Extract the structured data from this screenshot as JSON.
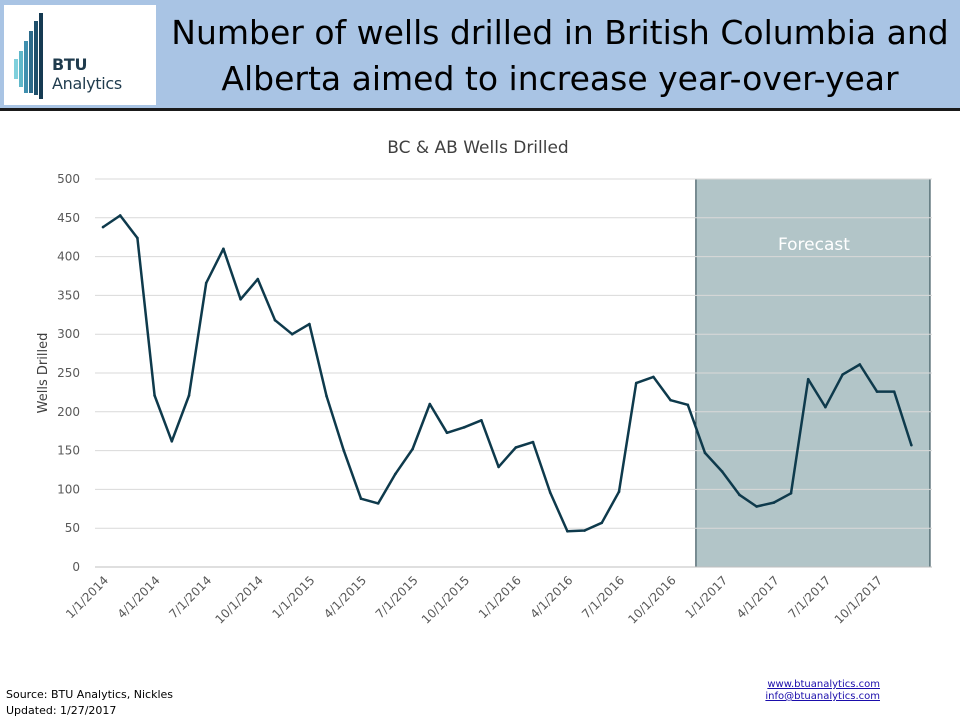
{
  "header": {
    "logo_text_bold": "BTU",
    "logo_text_rest": " Analytics",
    "title_line1": "Number of wells drilled in British Columbia and",
    "title_line2": "Alberta aimed to increase year-over-year",
    "background": "#a9c4e4"
  },
  "chart_data": {
    "type": "line",
    "title": "BC & AB Wells Drilled",
    "ylabel": "Wells Drilled",
    "xlabel": "",
    "ylim": [
      0,
      500
    ],
    "yticks": [
      0,
      50,
      100,
      150,
      200,
      250,
      300,
      350,
      400,
      450,
      500
    ],
    "grid": true,
    "x_start": "1/1/2014",
    "tick_labels": [
      "1/1/2014",
      "4/1/2014",
      "7/1/2014",
      "10/1/2014",
      "1/1/2015",
      "4/1/2015",
      "7/1/2015",
      "10/1/2015",
      "1/1/2016",
      "4/1/2016",
      "7/1/2016",
      "10/1/2016",
      "1/1/2017",
      "4/1/2017",
      "7/1/2017",
      "10/1/2017"
    ],
    "series": [
      {
        "color": "#0e3a4c",
        "values": [
          438,
          453,
          424,
          221,
          162,
          221,
          366,
          410,
          345,
          371,
          318,
          300,
          313,
          220,
          150,
          88,
          82,
          120,
          152,
          210,
          173,
          180,
          189,
          129,
          154,
          161,
          96,
          46,
          47,
          57,
          97,
          237,
          245,
          215,
          209,
          147,
          123,
          93,
          78,
          83,
          95,
          242,
          206,
          248,
          261,
          226,
          226,
          157
        ]
      }
    ],
    "forecast": {
      "label": "Forecast",
      "start_index": 35,
      "color": "#7f9ea4"
    }
  },
  "footer": {
    "source": "Source: BTU Analytics, Nickles",
    "updated": "Updated: 1/27/2017",
    "web": "www.btuanalytics.com",
    "email": "info@btuanalytics.com"
  }
}
